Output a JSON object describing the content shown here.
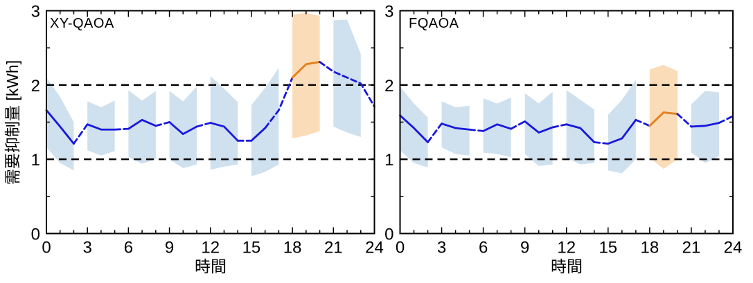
{
  "labels": {
    "ylabel": "需要抑制量 [kWh]",
    "xlabel": "時間"
  },
  "colors": {
    "background": "#ffffff",
    "axis": "#000000",
    "mean_line_blue": "#1818dd",
    "band_blue": "#cfe0ee",
    "mean_line_orange": "#e5821f",
    "band_orange": "#fbdcb9",
    "reference_line": "#000000",
    "text": "#000000"
  },
  "chart_data": [
    {
      "type": "line",
      "title": "XY-QAOA",
      "xlabel": "時間",
      "ylabel": "需要抑制量 [kWh]",
      "xlim": [
        0,
        24
      ],
      "ylim": [
        0,
        3
      ],
      "xticks": [
        0,
        3,
        6,
        9,
        12,
        15,
        18,
        21,
        24
      ],
      "yticks": [
        0,
        1,
        2,
        3
      ],
      "x_minor_step": 1,
      "y_minor_step": 0.5,
      "reference_lines_y": [
        1,
        2
      ],
      "grid": false,
      "legend": "none",
      "x": [
        0,
        1,
        2,
        3,
        4,
        5,
        6,
        7,
        8,
        9,
        10,
        11,
        12,
        13,
        14,
        15,
        16,
        17,
        18,
        19,
        20,
        21,
        22,
        23,
        24
      ],
      "mean": [
        1.66,
        1.44,
        1.21,
        1.47,
        1.4,
        1.4,
        1.41,
        1.53,
        1.45,
        1.5,
        1.34,
        1.44,
        1.49,
        1.44,
        1.25,
        1.25,
        1.42,
        1.66,
        2.1,
        2.28,
        2.31,
        2.18,
        2.1,
        2.02,
        1.71
      ],
      "highlight_range": [
        18,
        20
      ],
      "segments": [
        {
          "from": 0,
          "to": 2,
          "style": "solid",
          "color": "blue"
        },
        {
          "from": 2,
          "to": 3,
          "style": "dashed",
          "color": "blue"
        },
        {
          "from": 3,
          "to": 5,
          "style": "solid",
          "color": "blue"
        },
        {
          "from": 5,
          "to": 6,
          "style": "dashed",
          "color": "blue"
        },
        {
          "from": 6,
          "to": 8,
          "style": "solid",
          "color": "blue"
        },
        {
          "from": 8,
          "to": 9,
          "style": "dashed",
          "color": "blue"
        },
        {
          "from": 9,
          "to": 11,
          "style": "solid",
          "color": "blue"
        },
        {
          "from": 11,
          "to": 12,
          "style": "dashed",
          "color": "blue"
        },
        {
          "from": 12,
          "to": 14,
          "style": "solid",
          "color": "blue"
        },
        {
          "from": 14,
          "to": 15,
          "style": "dashed",
          "color": "blue"
        },
        {
          "from": 15,
          "to": 16,
          "style": "solid",
          "color": "blue"
        },
        {
          "from": 16,
          "to": 18,
          "style": "dashed",
          "color": "blue"
        },
        {
          "from": 18,
          "to": 20,
          "style": "solid",
          "color": "orange"
        },
        {
          "from": 20,
          "to": 24,
          "style": "dashed",
          "color": "blue"
        }
      ],
      "bands": [
        {
          "color": "blue",
          "x": [
            0,
            1,
            2
          ],
          "top": [
            2.1,
            1.84,
            1.5
          ],
          "bottom": [
            1.16,
            0.95,
            0.85
          ]
        },
        {
          "color": "blue",
          "x": [
            3,
            4,
            5
          ],
          "top": [
            1.78,
            1.7,
            1.79
          ],
          "bottom": [
            1.12,
            1.05,
            1.11
          ]
        },
        {
          "color": "blue",
          "x": [
            6,
            7,
            8
          ],
          "top": [
            1.93,
            1.79,
            1.92
          ],
          "bottom": [
            1.03,
            0.94,
            1.0
          ]
        },
        {
          "color": "blue",
          "x": [
            9,
            10,
            11
          ],
          "top": [
            1.92,
            1.78,
            1.98
          ],
          "bottom": [
            1.0,
            0.88,
            0.93
          ]
        },
        {
          "color": "blue",
          "x": [
            12,
            13,
            14
          ],
          "top": [
            2.12,
            1.95,
            1.77
          ],
          "bottom": [
            0.86,
            0.9,
            0.93
          ]
        },
        {
          "color": "blue",
          "x": [
            15,
            16,
            17
          ],
          "top": [
            1.73,
            1.96,
            2.23
          ],
          "bottom": [
            0.77,
            0.83,
            0.93
          ]
        },
        {
          "color": "orange",
          "x": [
            18,
            19,
            20
          ],
          "top": [
            2.95,
            2.97,
            2.93
          ],
          "bottom": [
            1.28,
            1.32,
            1.38
          ]
        },
        {
          "color": "blue",
          "x": [
            21,
            22,
            23
          ],
          "top": [
            2.87,
            2.88,
            2.42
          ],
          "bottom": [
            1.44,
            1.36,
            1.3
          ]
        }
      ]
    },
    {
      "type": "line",
      "title": "FQAOA",
      "xlabel": "時間",
      "ylabel": "需要抑制量 [kWh]",
      "xlim": [
        0,
        24
      ],
      "ylim": [
        0,
        3
      ],
      "xticks": [
        0,
        3,
        6,
        9,
        12,
        15,
        18,
        21,
        24
      ],
      "yticks": [
        0,
        1,
        2,
        3
      ],
      "x_minor_step": 1,
      "y_minor_step": 0.5,
      "reference_lines_y": [
        1,
        2
      ],
      "grid": false,
      "legend": "none",
      "x": [
        0,
        1,
        2,
        3,
        4,
        5,
        6,
        7,
        8,
        9,
        10,
        11,
        12,
        13,
        14,
        15,
        16,
        17,
        18,
        19,
        20,
        21,
        22,
        23,
        24
      ],
      "mean": [
        1.59,
        1.42,
        1.23,
        1.48,
        1.42,
        1.4,
        1.38,
        1.47,
        1.41,
        1.51,
        1.36,
        1.43,
        1.47,
        1.42,
        1.23,
        1.21,
        1.28,
        1.53,
        1.45,
        1.63,
        1.61,
        1.44,
        1.45,
        1.49,
        1.58
      ],
      "highlight_range": [
        18,
        20
      ],
      "segments": [
        {
          "from": 0,
          "to": 2,
          "style": "solid",
          "color": "blue"
        },
        {
          "from": 2,
          "to": 3,
          "style": "dashed",
          "color": "blue"
        },
        {
          "from": 3,
          "to": 5,
          "style": "solid",
          "color": "blue"
        },
        {
          "from": 5,
          "to": 6,
          "style": "dashed",
          "color": "blue"
        },
        {
          "from": 6,
          "to": 8,
          "style": "solid",
          "color": "blue"
        },
        {
          "from": 8,
          "to": 9,
          "style": "dashed",
          "color": "blue"
        },
        {
          "from": 9,
          "to": 11,
          "style": "solid",
          "color": "blue"
        },
        {
          "from": 11,
          "to": 12,
          "style": "dashed",
          "color": "blue"
        },
        {
          "from": 12,
          "to": 14,
          "style": "solid",
          "color": "blue"
        },
        {
          "from": 14,
          "to": 15,
          "style": "dashed",
          "color": "blue"
        },
        {
          "from": 15,
          "to": 17,
          "style": "solid",
          "color": "blue"
        },
        {
          "from": 17,
          "to": 18,
          "style": "dashed",
          "color": "blue"
        },
        {
          "from": 18,
          "to": 20,
          "style": "solid",
          "color": "orange"
        },
        {
          "from": 20,
          "to": 21,
          "style": "dashed",
          "color": "blue"
        },
        {
          "from": 21,
          "to": 23,
          "style": "solid",
          "color": "blue"
        },
        {
          "from": 23,
          "to": 24,
          "style": "dashed",
          "color": "blue"
        }
      ],
      "bands": [
        {
          "color": "blue",
          "x": [
            0,
            1,
            2
          ],
          "top": [
            1.98,
            1.75,
            1.56
          ],
          "bottom": [
            1.12,
            0.95,
            0.89
          ]
        },
        {
          "color": "blue",
          "x": [
            3,
            4,
            5
          ],
          "top": [
            1.78,
            1.7,
            1.72
          ],
          "bottom": [
            1.16,
            1.07,
            1.05
          ]
        },
        {
          "color": "blue",
          "x": [
            6,
            7,
            8
          ],
          "top": [
            1.82,
            1.75,
            1.83
          ],
          "bottom": [
            1.09,
            1.07,
            1.03
          ]
        },
        {
          "color": "blue",
          "x": [
            9,
            10,
            11
          ],
          "top": [
            1.89,
            1.75,
            1.91
          ],
          "bottom": [
            1.07,
            0.91,
            0.93
          ]
        },
        {
          "color": "blue",
          "x": [
            12,
            13,
            14
          ],
          "top": [
            1.93,
            1.8,
            1.67
          ],
          "bottom": [
            1.02,
            0.93,
            0.95
          ]
        },
        {
          "color": "blue",
          "x": [
            15,
            16,
            17
          ],
          "top": [
            1.6,
            1.8,
            2.07
          ],
          "bottom": [
            0.85,
            0.81,
            1.0
          ]
        },
        {
          "color": "orange",
          "x": [
            18,
            19,
            20
          ],
          "top": [
            2.21,
            2.27,
            2.19
          ],
          "bottom": [
            1.02,
            0.87,
            1.0
          ]
        },
        {
          "color": "blue",
          "x": [
            21,
            22,
            23
          ],
          "top": [
            1.74,
            1.92,
            1.9
          ],
          "bottom": [
            1.09,
            0.95,
            1.04
          ]
        }
      ]
    }
  ]
}
